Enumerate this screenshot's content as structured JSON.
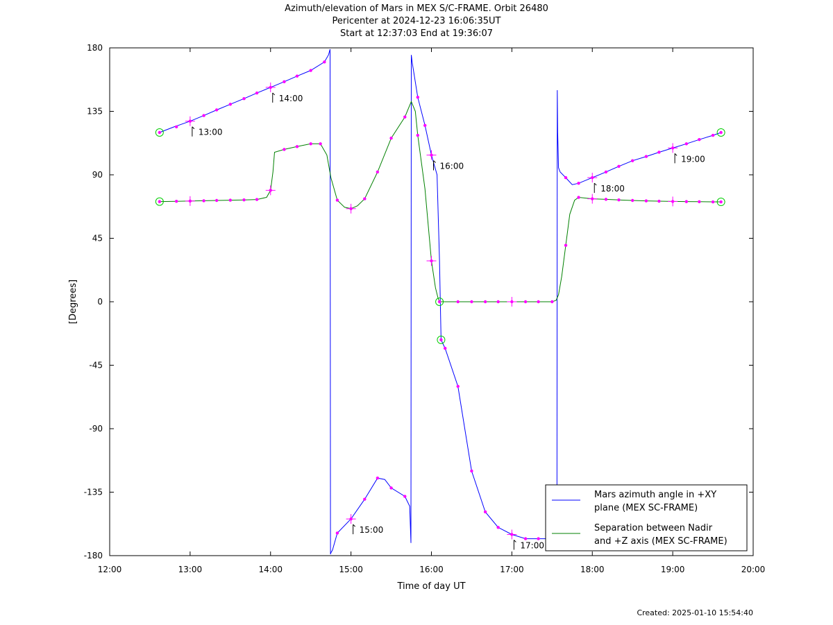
{
  "header": {
    "title": "Azimuth/elevation of Mars in MEX S/C-FRAME.  Orbit 26480",
    "subtitle1": "Pericenter at 2024-12-23 16:06:35UT",
    "subtitle2": "Start at 12:37:03 End at 19:36:07"
  },
  "footer": {
    "created": "Created: 2025-01-10 15:54:40"
  },
  "chart_data": {
    "type": "line",
    "xlabel": "Time of day UT",
    "ylabel": "[Degrees]",
    "xlim": [
      12.0,
      20.0
    ],
    "ylim": [
      -180,
      180
    ],
    "xticks": [
      12,
      13,
      14,
      15,
      16,
      17,
      18,
      19,
      20
    ],
    "xtick_labels": [
      "12:00",
      "13:00",
      "14:00",
      "15:00",
      "16:00",
      "17:00",
      "18:00",
      "19:00",
      "20:00"
    ],
    "yticks": [
      180,
      135,
      90,
      45,
      0,
      -45,
      -90,
      -135,
      -180
    ],
    "ytick_labels": [
      "180",
      "135",
      "90",
      "45",
      "0",
      "-45",
      "-90",
      "-135",
      "-180"
    ],
    "grid": false,
    "legend_position": "bottom-right",
    "series": [
      {
        "name": "Mars azimuth angle in +XY plane (MEX SC-FRAME)",
        "legend_lines": [
          "Mars azimuth angle in +XY",
          "plane (MEX SC-FRAME)"
        ],
        "color": "#0000ff",
        "x": [
          12.62,
          12.8,
          13.0,
          13.17,
          13.33,
          13.5,
          13.67,
          13.83,
          14.0,
          14.17,
          14.33,
          14.5,
          14.67,
          14.72,
          14.74,
          14.745,
          14.75,
          14.77,
          14.83,
          15.0,
          15.17,
          15.33,
          15.42,
          15.5,
          15.67,
          15.73,
          15.745,
          15.75,
          15.76,
          15.83,
          15.92,
          16.0,
          16.07,
          16.1,
          16.12,
          16.17,
          16.33,
          16.5,
          16.67,
          16.83,
          17.0,
          17.17,
          17.33,
          17.5,
          17.56,
          17.565,
          17.57,
          17.58,
          17.6,
          17.67,
          17.75,
          17.83,
          18.0,
          18.17,
          18.33,
          18.5,
          18.67,
          18.83,
          19.0,
          19.17,
          19.33,
          19.5,
          19.6
        ],
        "y": [
          120,
          124,
          128,
          132,
          136,
          140,
          144,
          148,
          152,
          156,
          160,
          164,
          170,
          175,
          179,
          -179,
          -178,
          -176,
          -164,
          -154,
          -140,
          -125,
          -126,
          -132,
          -138,
          -145,
          -171,
          175,
          170,
          145,
          125,
          104,
          90,
          30,
          -27,
          -33,
          -60,
          -120,
          -149,
          -160,
          -165,
          -168,
          -168,
          -168,
          -167,
          150,
          120,
          95,
          92,
          88,
          83,
          84,
          88,
          92,
          96,
          100,
          103,
          106,
          109,
          112,
          115,
          118,
          120
        ]
      },
      {
        "name": "Separation between Nadir and +Z axis (MEX SC-FRAME)",
        "legend_lines": [
          "Separation between Nadir",
          "and +Z axis (MEX SC-FRAME)"
        ],
        "color": "#008000",
        "x": [
          12.62,
          12.83,
          13.0,
          13.17,
          13.33,
          13.5,
          13.67,
          13.83,
          13.95,
          14.0,
          14.03,
          14.05,
          14.17,
          14.33,
          14.5,
          14.62,
          14.7,
          14.75,
          14.83,
          14.92,
          15.0,
          15.08,
          15.17,
          15.33,
          15.5,
          15.67,
          15.75,
          15.8,
          15.83,
          15.92,
          16.0,
          16.05,
          16.08,
          16.1,
          16.17,
          16.33,
          16.5,
          16.67,
          16.83,
          17.0,
          17.17,
          17.33,
          17.5,
          17.55,
          17.58,
          17.62,
          17.67,
          17.72,
          17.78,
          17.83,
          18.0,
          18.17,
          18.33,
          18.5,
          18.67,
          18.83,
          19.0,
          19.17,
          19.33,
          19.5,
          19.6
        ],
        "y": [
          71,
          71.2,
          71.4,
          71.6,
          71.8,
          72,
          72.2,
          72.5,
          74,
          79,
          92,
          106,
          108,
          110,
          112,
          112,
          104,
          88,
          72,
          67,
          66,
          68,
          73,
          92,
          116,
          131,
          142,
          135,
          118,
          80,
          29,
          10,
          3,
          0,
          0,
          0,
          0,
          0,
          0,
          0,
          0,
          0,
          0,
          1,
          5,
          18,
          40,
          62,
          72,
          74,
          73,
          72.6,
          72.2,
          71.8,
          71.5,
          71.3,
          71.1,
          71,
          70.9,
          70.8,
          70.8
        ]
      }
    ],
    "markers": [
      {
        "series": 0,
        "points": [
          [
            12.62,
            120
          ],
          [
            12.83,
            124
          ],
          [
            13.0,
            128
          ],
          [
            13.17,
            132
          ],
          [
            13.33,
            136
          ],
          [
            13.5,
            140
          ],
          [
            13.67,
            144
          ],
          [
            13.83,
            148
          ],
          [
            14.0,
            152
          ],
          [
            14.17,
            156
          ],
          [
            14.33,
            160
          ],
          [
            14.5,
            164
          ],
          [
            14.67,
            170
          ],
          [
            14.83,
            -164
          ],
          [
            15.0,
            -154
          ],
          [
            15.17,
            -140
          ],
          [
            15.33,
            -125
          ],
          [
            15.5,
            -132
          ],
          [
            15.67,
            -138
          ],
          [
            15.83,
            145
          ],
          [
            15.92,
            125
          ],
          [
            16.0,
            104
          ],
          [
            16.12,
            -27
          ],
          [
            16.17,
            -33
          ],
          [
            16.33,
            -60
          ],
          [
            16.5,
            -120
          ],
          [
            16.67,
            -149
          ],
          [
            16.83,
            -160
          ],
          [
            17.0,
            -165
          ],
          [
            17.17,
            -168
          ],
          [
            17.33,
            -168
          ],
          [
            17.67,
            88
          ],
          [
            17.83,
            84
          ],
          [
            18.0,
            88
          ],
          [
            18.17,
            92
          ],
          [
            18.33,
            96
          ],
          [
            18.5,
            100
          ],
          [
            18.67,
            103
          ],
          [
            18.83,
            106
          ],
          [
            19.0,
            109
          ],
          [
            19.17,
            112
          ],
          [
            19.33,
            115
          ],
          [
            19.5,
            118
          ],
          [
            19.6,
            120
          ]
        ]
      },
      {
        "series": 1,
        "points": [
          [
            12.62,
            71
          ],
          [
            12.83,
            71.2
          ],
          [
            13.0,
            71.4
          ],
          [
            13.17,
            71.6
          ],
          [
            13.33,
            71.8
          ],
          [
            13.5,
            72
          ],
          [
            13.67,
            72.2
          ],
          [
            13.83,
            72.5
          ],
          [
            14.0,
            79
          ],
          [
            14.17,
            108
          ],
          [
            14.33,
            110
          ],
          [
            14.5,
            112
          ],
          [
            14.62,
            112
          ],
          [
            14.83,
            72
          ],
          [
            15.0,
            66
          ],
          [
            15.17,
            73
          ],
          [
            15.33,
            92
          ],
          [
            15.5,
            116
          ],
          [
            15.67,
            131
          ],
          [
            15.83,
            118
          ],
          [
            16.0,
            29
          ],
          [
            16.1,
            0
          ],
          [
            16.33,
            0
          ],
          [
            16.5,
            0
          ],
          [
            16.67,
            0
          ],
          [
            16.83,
            0
          ],
          [
            17.0,
            0
          ],
          [
            17.17,
            0
          ],
          [
            17.33,
            0
          ],
          [
            17.5,
            0
          ],
          [
            17.67,
            40
          ],
          [
            17.83,
            74
          ],
          [
            18.0,
            73
          ],
          [
            18.17,
            72.6
          ],
          [
            18.33,
            72.2
          ],
          [
            18.5,
            71.8
          ],
          [
            18.67,
            71.5
          ],
          [
            18.83,
            71.3
          ],
          [
            19.0,
            71.1
          ],
          [
            19.17,
            71
          ],
          [
            19.33,
            70.9
          ],
          [
            19.5,
            70.8
          ],
          [
            19.6,
            70.8
          ]
        ]
      }
    ],
    "hour_crosses": [
      [
        13.0,
        128
      ],
      [
        14.0,
        152
      ],
      [
        15.0,
        -154
      ],
      [
        16.0,
        104
      ],
      [
        17.0,
        -165
      ],
      [
        18.0,
        88
      ],
      [
        19.0,
        109
      ],
      [
        13.0,
        71.4
      ],
      [
        14.0,
        79
      ],
      [
        15.0,
        66
      ],
      [
        16.0,
        29
      ],
      [
        17.0,
        0
      ],
      [
        18.0,
        73
      ],
      [
        19.0,
        71.1
      ]
    ],
    "circles": [
      [
        12.62,
        120
      ],
      [
        12.62,
        71
      ],
      [
        16.1,
        0
      ],
      [
        16.12,
        -27
      ],
      [
        19.6,
        120
      ],
      [
        19.6,
        70.8
      ]
    ],
    "annotations": [
      {
        "text": "13:00",
        "x": 13.0,
        "y": 128
      },
      {
        "text": "14:00",
        "x": 14.0,
        "y": 152
      },
      {
        "text": "15:00",
        "x": 15.0,
        "y": -154
      },
      {
        "text": "16:00",
        "x": 16.0,
        "y": 104
      },
      {
        "text": "17:00",
        "x": 17.0,
        "y": -165
      },
      {
        "text": "18:00",
        "x": 18.0,
        "y": 88
      },
      {
        "text": "19:00",
        "x": 19.0,
        "y": 109
      }
    ]
  }
}
